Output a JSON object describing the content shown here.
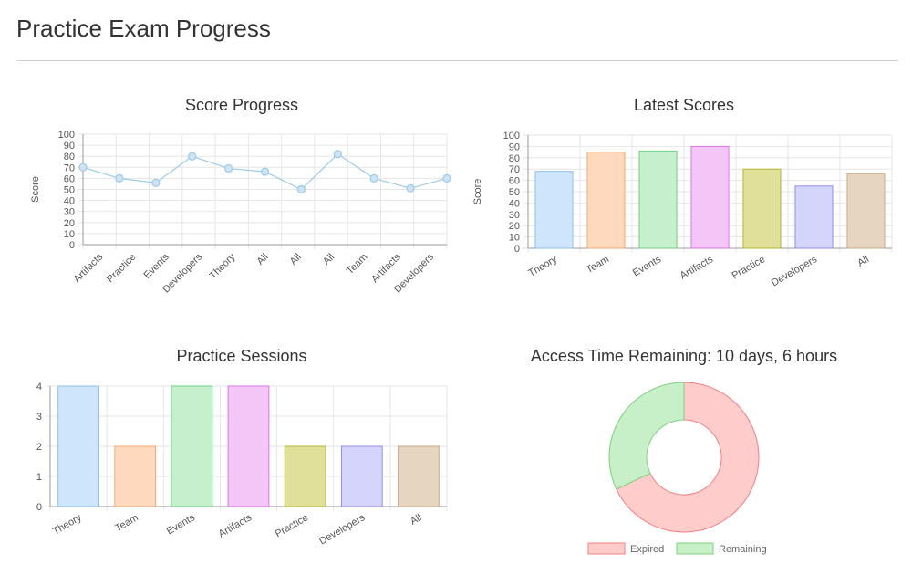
{
  "page": {
    "title": "Practice Exam Progress"
  },
  "chart_data": [
    {
      "id": "score-progress",
      "type": "line",
      "title": "Score Progress",
      "ylabel": "Score",
      "xlabel": "",
      "ylim": [
        0,
        100
      ],
      "yticks": [
        0,
        10,
        20,
        30,
        40,
        50,
        60,
        70,
        80,
        90,
        100
      ],
      "categories": [
        "Artifacts",
        "Practice",
        "Events",
        "Developers",
        "Theory",
        "All",
        "All",
        "All",
        "Team",
        "Artifacts",
        "Developers"
      ],
      "values": [
        70,
        60,
        56,
        80,
        69,
        66,
        50,
        82,
        60,
        51,
        60
      ],
      "color": "#9ccbe8",
      "grid": true,
      "legend": "none"
    },
    {
      "id": "latest-scores",
      "type": "bar",
      "title": "Latest Scores",
      "ylabel": "Score",
      "xlabel": "",
      "ylim": [
        0,
        100
      ],
      "yticks": [
        0,
        10,
        20,
        30,
        40,
        50,
        60,
        70,
        80,
        90,
        100
      ],
      "categories": [
        "Theory",
        "Team",
        "Events",
        "Artifacts",
        "Practice",
        "Developers",
        "All"
      ],
      "values": [
        68,
        85,
        86,
        90,
        70,
        55,
        66
      ],
      "grid": true,
      "legend": "none"
    },
    {
      "id": "practice-sessions",
      "type": "bar",
      "title": "Practice Sessions",
      "ylabel": "",
      "xlabel": "",
      "ylim": [
        0,
        4
      ],
      "yticks": [
        0,
        1,
        2,
        3,
        4
      ],
      "categories": [
        "Theory",
        "Team",
        "Events",
        "Artifacts",
        "Practice",
        "Developers",
        "All"
      ],
      "values": [
        4,
        2,
        4,
        4,
        2,
        2,
        2
      ],
      "grid": true,
      "legend": "none"
    },
    {
      "id": "access-time",
      "type": "pie",
      "title": "Access Time Remaining: 10 days, 6 hours",
      "labels": [
        "Expired",
        "Remaining"
      ],
      "values": [
        68,
        32
      ],
      "colors": [
        "#ffcccc",
        "#c8f0c8"
      ],
      "border_colors": [
        "#f08080",
        "#7fd07f"
      ],
      "legend": "bottom"
    }
  ],
  "bar_palette": {
    "fills": [
      "#cfe5fb",
      "#fed9bd",
      "#c6f0cd",
      "#f3c6f7",
      "#e0e09a",
      "#d5d4fb",
      "#e6d5c0"
    ],
    "borders": [
      "#8ebfe8",
      "#f2a870",
      "#6fcf80",
      "#d777df",
      "#b5b535",
      "#8f8ce8",
      "#c9a885"
    ]
  }
}
